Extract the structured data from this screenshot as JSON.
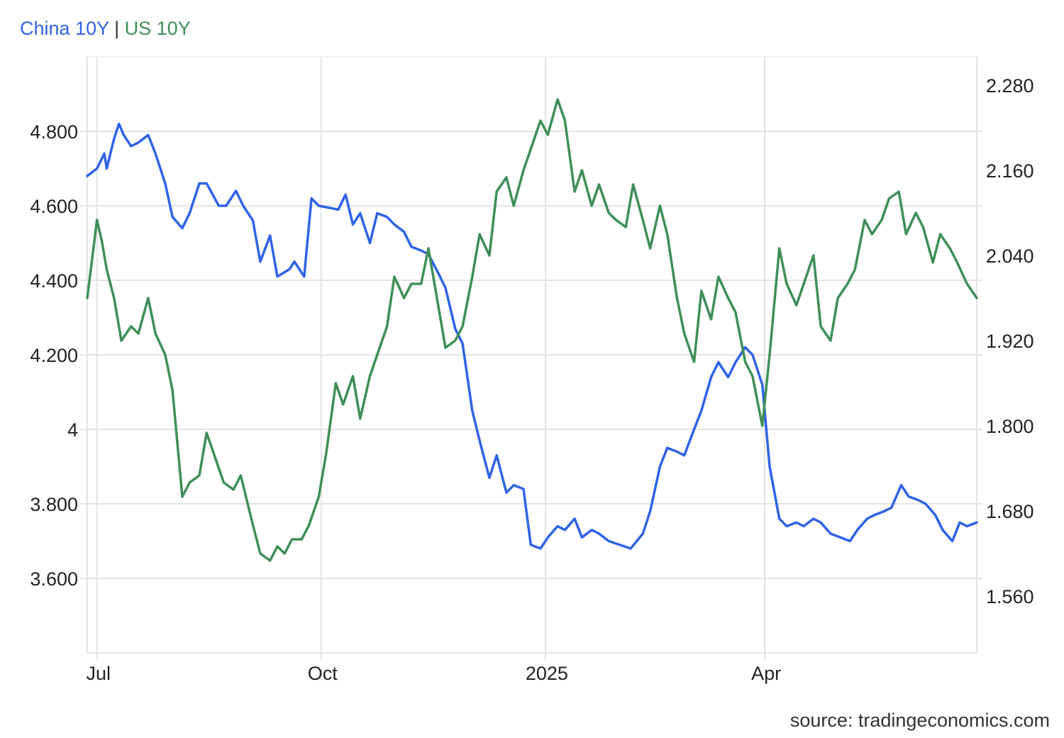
{
  "legend": {
    "china_label": "China 10Y",
    "separator": "|",
    "us_label": "US 10Y"
  },
  "source": "source: tradingeconomics.com",
  "colors": {
    "china": "#3063e6",
    "us": "#3f8f58",
    "grid": "#e4e4e4",
    "text": "#222222"
  },
  "chart_data": {
    "type": "line",
    "title": "",
    "x_tick_labels": [
      "Jul",
      "Oct",
      "2025",
      "Apr"
    ],
    "x_tick_dates": [
      "2024-07-01",
      "2024-10-01",
      "2025-01-01",
      "2025-04-01"
    ],
    "x_range": [
      "2024-06-27",
      "2025-06-27"
    ],
    "left_axis": {
      "series": "China 10Y",
      "range": [
        3.4,
        5.0
      ],
      "ticks": [
        4.8,
        4.6,
        4.4,
        4.2,
        4.0,
        3.8,
        3.6
      ],
      "tick_labels": [
        "4.800",
        "4.600",
        "4.400",
        "4.200",
        "4",
        "3.800",
        "3.600"
      ]
    },
    "right_axis": {
      "series": "US 10Y",
      "range": [
        1.48,
        2.32
      ],
      "ticks": [
        2.28,
        2.16,
        2.04,
        1.92,
        1.8,
        1.68,
        1.56
      ],
      "tick_labels": [
        "2.280",
        "2.160",
        "2.040",
        "1.920",
        "1.800",
        "1.680",
        "1.560"
      ]
    },
    "grid": true,
    "legend_position": "top-left",
    "series": [
      {
        "name": "China 10Y",
        "axis": "left",
        "color": "#3063e6",
        "x": [
          "2024-06-27",
          "2024-07-01",
          "2024-07-04",
          "2024-07-05",
          "2024-07-08",
          "2024-07-10",
          "2024-07-12",
          "2024-07-15",
          "2024-07-18",
          "2024-07-22",
          "2024-07-25",
          "2024-07-29",
          "2024-08-01",
          "2024-08-05",
          "2024-08-08",
          "2024-08-12",
          "2024-08-15",
          "2024-08-20",
          "2024-08-23",
          "2024-08-27",
          "2024-08-30",
          "2024-09-03",
          "2024-09-06",
          "2024-09-10",
          "2024-09-13",
          "2024-09-18",
          "2024-09-20",
          "2024-09-24",
          "2024-09-27",
          "2024-09-30",
          "2024-10-08",
          "2024-10-11",
          "2024-10-14",
          "2024-10-17",
          "2024-10-21",
          "2024-10-24",
          "2024-10-28",
          "2024-10-31",
          "2024-11-04",
          "2024-11-07",
          "2024-11-11",
          "2024-11-14",
          "2024-11-18",
          "2024-11-21",
          "2024-11-25",
          "2024-11-28",
          "2024-12-02",
          "2024-12-05",
          "2024-12-09",
          "2024-12-12",
          "2024-12-16",
          "2024-12-19",
          "2024-12-23",
          "2024-12-26",
          "2024-12-30",
          "2025-01-02",
          "2025-01-06",
          "2025-01-09",
          "2025-01-13",
          "2025-01-16",
          "2025-01-20",
          "2025-01-23",
          "2025-01-27",
          "2025-02-05",
          "2025-02-10",
          "2025-02-13",
          "2025-02-17",
          "2025-02-20",
          "2025-02-24",
          "2025-02-27",
          "2025-03-03",
          "2025-03-06",
          "2025-03-10",
          "2025-03-13",
          "2025-03-17",
          "2025-03-20",
          "2025-03-24",
          "2025-03-27",
          "2025-03-31",
          "2025-04-03",
          "2025-04-07",
          "2025-04-10",
          "2025-04-14",
          "2025-04-17",
          "2025-04-21",
          "2025-04-24",
          "2025-04-28",
          "2025-05-06",
          "2025-05-09",
          "2025-05-13",
          "2025-05-16",
          "2025-05-20",
          "2025-05-23",
          "2025-05-27",
          "2025-05-30",
          "2025-06-03",
          "2025-06-06",
          "2025-06-10",
          "2025-06-13",
          "2025-06-17",
          "2025-06-20",
          "2025-06-23",
          "2025-06-27"
        ],
        "values": [
          4.68,
          4.7,
          4.74,
          4.7,
          4.78,
          4.82,
          4.79,
          4.76,
          4.77,
          4.79,
          4.74,
          4.66,
          4.57,
          4.54,
          4.58,
          4.66,
          4.66,
          4.6,
          4.6,
          4.64,
          4.6,
          4.56,
          4.45,
          4.52,
          4.41,
          4.43,
          4.45,
          4.41,
          4.62,
          4.6,
          4.59,
          4.63,
          4.55,
          4.58,
          4.5,
          4.58,
          4.57,
          4.55,
          4.53,
          4.49,
          4.48,
          4.47,
          4.42,
          4.38,
          4.27,
          4.23,
          4.05,
          3.97,
          3.87,
          3.93,
          3.83,
          3.85,
          3.84,
          3.69,
          3.68,
          3.71,
          3.74,
          3.73,
          3.76,
          3.71,
          3.73,
          3.72,
          3.7,
          3.68,
          3.72,
          3.78,
          3.9,
          3.95,
          3.94,
          3.93,
          4.0,
          4.05,
          4.14,
          4.18,
          4.14,
          4.18,
          4.22,
          4.2,
          4.12,
          3.9,
          3.76,
          3.74,
          3.75,
          3.74,
          3.76,
          3.75,
          3.72,
          3.7,
          3.73,
          3.76,
          3.77,
          3.78,
          3.79,
          3.85,
          3.82,
          3.81,
          3.8,
          3.77,
          3.73,
          3.7,
          3.75,
          3.74,
          3.75
        ]
      },
      {
        "name": "US 10Y",
        "axis": "right",
        "color": "#3f8f58",
        "x": [
          "2024-06-27",
          "2024-07-01",
          "2024-07-03",
          "2024-07-05",
          "2024-07-08",
          "2024-07-11",
          "2024-07-15",
          "2024-07-18",
          "2024-07-22",
          "2024-07-25",
          "2024-07-29",
          "2024-08-01",
          "2024-08-05",
          "2024-08-08",
          "2024-08-12",
          "2024-08-15",
          "2024-08-19",
          "2024-08-22",
          "2024-08-26",
          "2024-08-29",
          "2024-09-03",
          "2024-09-06",
          "2024-09-10",
          "2024-09-13",
          "2024-09-16",
          "2024-09-19",
          "2024-09-23",
          "2024-09-26",
          "2024-09-30",
          "2024-10-03",
          "2024-10-07",
          "2024-10-10",
          "2024-10-14",
          "2024-10-17",
          "2024-10-21",
          "2024-10-24",
          "2024-10-28",
          "2024-10-31",
          "2024-11-04",
          "2024-11-07",
          "2024-11-11",
          "2024-11-14",
          "2024-11-18",
          "2024-11-21",
          "2024-11-25",
          "2024-11-28",
          "2024-12-02",
          "2024-12-05",
          "2024-12-09",
          "2024-12-12",
          "2024-12-16",
          "2024-12-19",
          "2024-12-23",
          "2024-12-27",
          "2024-12-30",
          "2025-01-02",
          "2025-01-06",
          "2025-01-09",
          "2025-01-13",
          "2025-01-16",
          "2025-01-20",
          "2025-01-23",
          "2025-01-27",
          "2025-01-30",
          "2025-02-03",
          "2025-02-06",
          "2025-02-10",
          "2025-02-13",
          "2025-02-17",
          "2025-02-20",
          "2025-02-24",
          "2025-02-27",
          "2025-03-03",
          "2025-03-06",
          "2025-03-10",
          "2025-03-13",
          "2025-03-17",
          "2025-03-20",
          "2025-03-24",
          "2025-03-27",
          "2025-03-31",
          "2025-04-03",
          "2025-04-07",
          "2025-04-10",
          "2025-04-14",
          "2025-04-17",
          "2025-04-21",
          "2025-04-24",
          "2025-04-28",
          "2025-05-01",
          "2025-05-05",
          "2025-05-08",
          "2025-05-12",
          "2025-05-15",
          "2025-05-19",
          "2025-05-22",
          "2025-05-26",
          "2025-05-29",
          "2025-06-02",
          "2025-06-05",
          "2025-06-09",
          "2025-06-12",
          "2025-06-16",
          "2025-06-19",
          "2025-06-23",
          "2025-06-27"
        ],
        "values": [
          1.98,
          2.09,
          2.06,
          2.02,
          1.98,
          1.92,
          1.94,
          1.93,
          1.98,
          1.93,
          1.9,
          1.85,
          1.7,
          1.72,
          1.73,
          1.79,
          1.75,
          1.72,
          1.71,
          1.73,
          1.66,
          1.62,
          1.61,
          1.63,
          1.62,
          1.64,
          1.64,
          1.66,
          1.7,
          1.76,
          1.86,
          1.83,
          1.87,
          1.81,
          1.87,
          1.9,
          1.94,
          2.01,
          1.98,
          2.0,
          2.0,
          2.05,
          1.97,
          1.91,
          1.92,
          1.94,
          2.01,
          2.07,
          2.04,
          2.13,
          2.15,
          2.11,
          2.16,
          2.2,
          2.23,
          2.21,
          2.26,
          2.23,
          2.13,
          2.16,
          2.11,
          2.14,
          2.1,
          2.09,
          2.08,
          2.14,
          2.09,
          2.05,
          2.11,
          2.07,
          1.98,
          1.93,
          1.89,
          1.99,
          1.95,
          2.01,
          1.98,
          1.96,
          1.89,
          1.87,
          1.8,
          1.9,
          2.05,
          2.0,
          1.97,
          2.0,
          2.04,
          1.94,
          1.92,
          1.98,
          2.0,
          2.02,
          2.09,
          2.07,
          2.09,
          2.12,
          2.13,
          2.07,
          2.1,
          2.08,
          2.03,
          2.07,
          2.05,
          2.03,
          2.0,
          1.98
        ]
      }
    ]
  }
}
